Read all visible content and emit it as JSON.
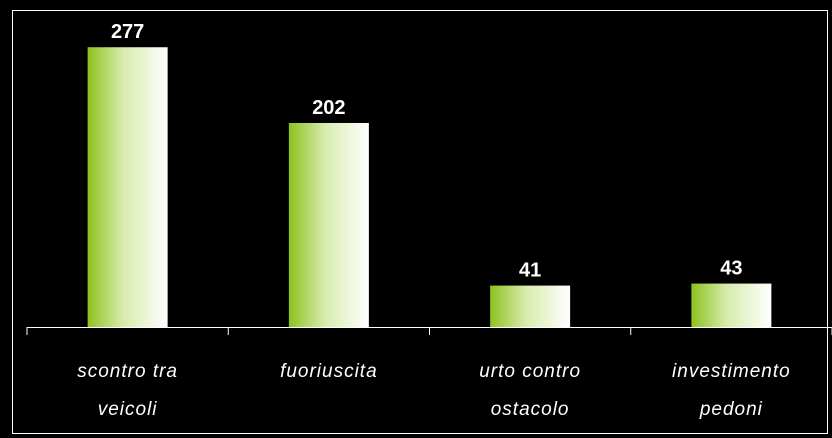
{
  "chart_data": {
    "type": "bar",
    "categories": [
      "scontro tra veicoli",
      "fuoriuscita",
      "urto contro ostacolo",
      "investimento pedoni"
    ],
    "values": [
      277,
      202,
      41,
      43
    ]
  }
}
